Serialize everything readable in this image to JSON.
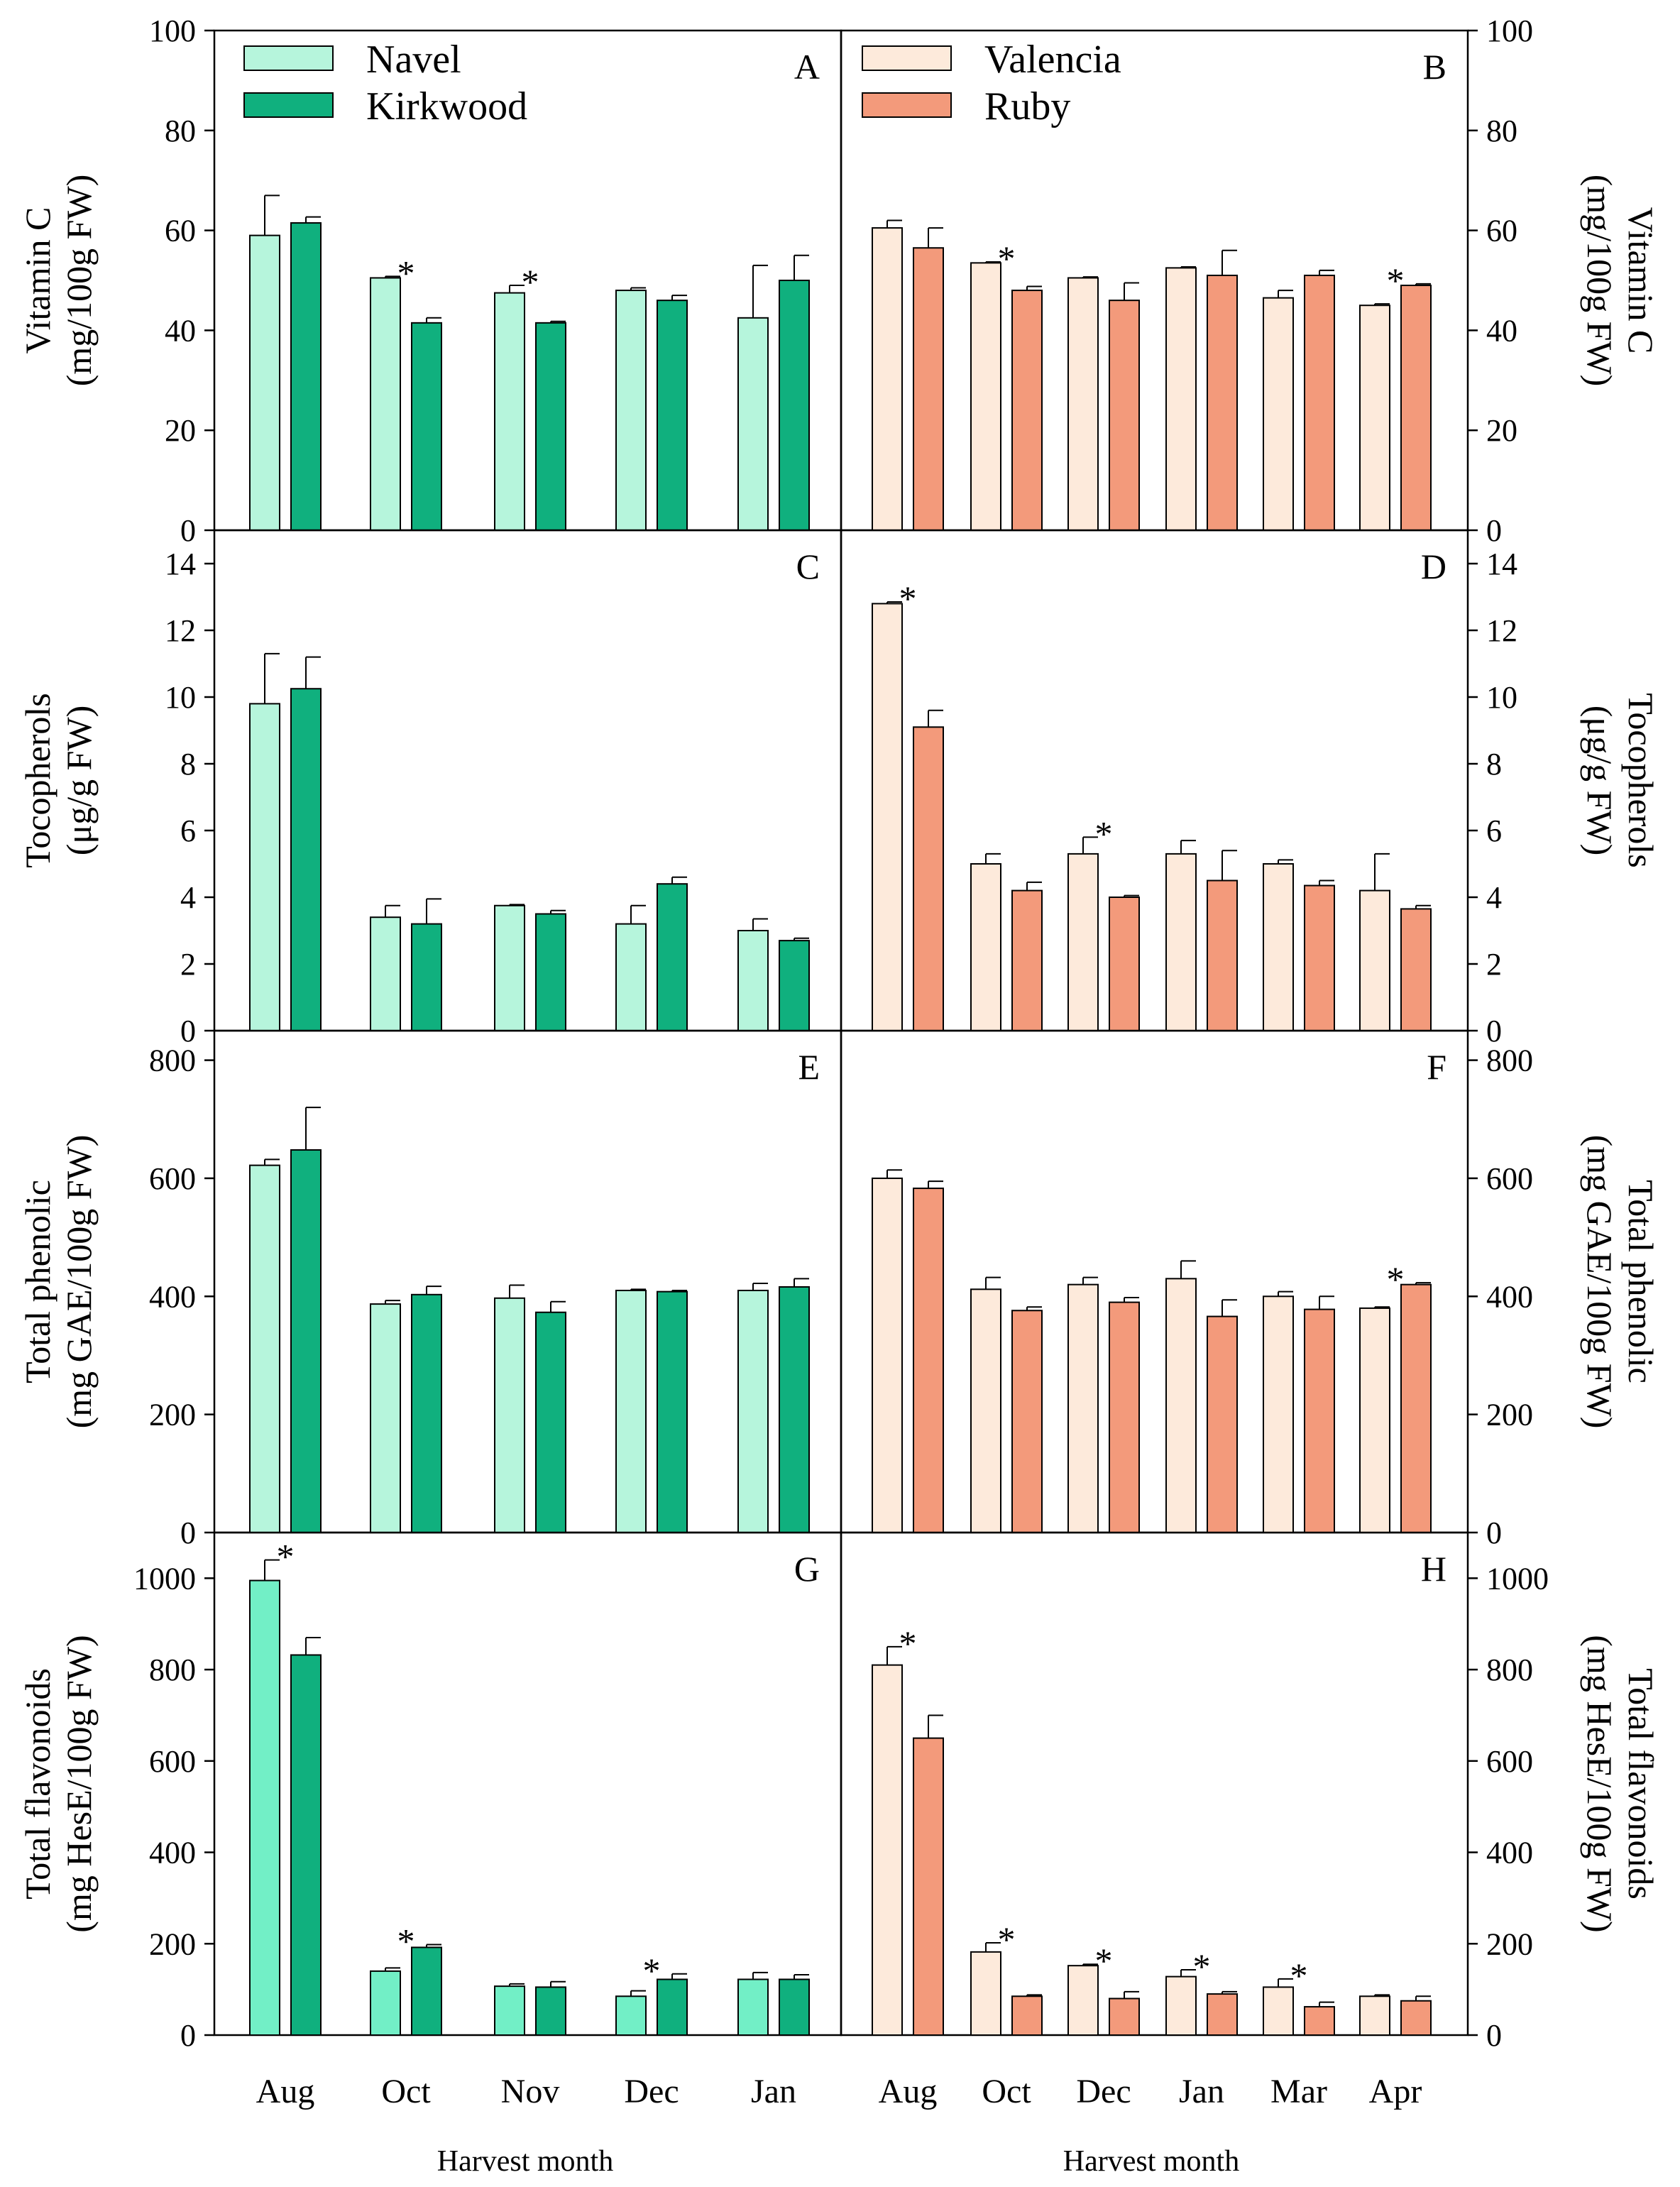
{
  "colors": {
    "navel": "#b6f5dc",
    "kirkwood": "#10b07e",
    "navel_flav": "#72efc6",
    "valencia": "#fdeadb",
    "ruby": "#f39a7b",
    "axis": "#000000"
  },
  "x_axis_label": "Harvest month",
  "chart_data": [
    {
      "panel": "A",
      "type": "bar",
      "ylabel": [
        "Vitamin C",
        "(mg/100g FW)"
      ],
      "ylim": [
        0,
        100
      ],
      "yticks": [
        0,
        20,
        40,
        60,
        80,
        100
      ],
      "categories": [
        "Aug",
        "Oct",
        "Nov",
        "Dec",
        "Jan"
      ],
      "series": [
        {
          "name": "Navel",
          "values": [
            59,
            50.5,
            47.5,
            48,
            42.5
          ],
          "errors": [
            8,
            0.3,
            1.5,
            0.5,
            10.5
          ]
        },
        {
          "name": "Kirkwood",
          "values": [
            61.5,
            41.5,
            41.5,
            46,
            50
          ],
          "errors": [
            1.2,
            1,
            0.3,
            1,
            5
          ]
        }
      ],
      "significant": [
        false,
        true,
        true,
        false,
        false
      ],
      "legend": [
        "Navel",
        "Kirkwood"
      ]
    },
    {
      "panel": "B",
      "type": "bar",
      "ylabel": [
        "Vitamin C",
        "(mg/100g FW)"
      ],
      "ylim": [
        0,
        100
      ],
      "yticks": [
        0,
        20,
        40,
        60,
        80,
        100
      ],
      "categories": [
        "Aug",
        "Oct",
        "Dec",
        "Jan",
        "Mar",
        "Apr"
      ],
      "series": [
        {
          "name": "Valencia",
          "values": [
            60.5,
            53.5,
            50.5,
            52.5,
            46.5,
            45
          ],
          "errors": [
            1.5,
            0.2,
            0.2,
            0.2,
            1.5,
            0.3
          ]
        },
        {
          "name": "Ruby",
          "values": [
            56.5,
            48,
            46,
            51,
            51,
            49
          ],
          "errors": [
            4,
            0.8,
            3.5,
            5,
            1,
            0.3
          ]
        }
      ],
      "significant": [
        false,
        true,
        false,
        false,
        false,
        true
      ],
      "legend": [
        "Valencia",
        "Ruby"
      ]
    },
    {
      "panel": "C",
      "type": "bar",
      "ylabel": [
        "Tocopherols",
        "(μg/g FW)"
      ],
      "ylim": [
        0,
        15
      ],
      "yticks": [
        0,
        2,
        4,
        6,
        8,
        10,
        12,
        14
      ],
      "categories": [
        "Aug",
        "Oct",
        "Nov",
        "Dec",
        "Jan"
      ],
      "series": [
        {
          "name": "Navel",
          "values": [
            9.8,
            3.4,
            3.75,
            3.2,
            3.0
          ],
          "errors": [
            1.5,
            0.35,
            0.03,
            0.55,
            0.35
          ]
        },
        {
          "name": "Kirkwood",
          "values": [
            10.25,
            3.2,
            3.5,
            4.4,
            2.7
          ],
          "errors": [
            0.95,
            0.75,
            0.1,
            0.2,
            0.07
          ]
        }
      ],
      "significant": [
        false,
        false,
        false,
        false,
        false
      ]
    },
    {
      "panel": "D",
      "type": "bar",
      "ylabel": [
        "Tocopherols",
        "(μg/g FW)"
      ],
      "ylim": [
        0,
        15
      ],
      "yticks": [
        0,
        2,
        4,
        6,
        8,
        10,
        12,
        14
      ],
      "categories": [
        "Aug",
        "Oct",
        "Dec",
        "Jan",
        "Mar",
        "Apr"
      ],
      "series": [
        {
          "name": "Valencia",
          "values": [
            12.8,
            5.0,
            5.3,
            5.3,
            5.0,
            4.2
          ],
          "errors": [
            0.05,
            0.3,
            0.5,
            0.4,
            0.12,
            1.1
          ]
        },
        {
          "name": "Ruby",
          "values": [
            9.1,
            4.2,
            4.0,
            4.5,
            4.35,
            3.65
          ],
          "errors": [
            0.5,
            0.25,
            0.05,
            0.9,
            0.15,
            0.1
          ]
        }
      ],
      "significant": [
        true,
        false,
        true,
        false,
        false,
        false
      ]
    },
    {
      "panel": "E",
      "type": "bar",
      "ylabel": [
        "Total phenolic",
        "(mg GAE/100g FW)"
      ],
      "ylim": [
        0,
        850
      ],
      "yticks": [
        0,
        200,
        400,
        600,
        800
      ],
      "categories": [
        "Aug",
        "Oct",
        "Nov",
        "Dec",
        "Jan"
      ],
      "series": [
        {
          "name": "Navel",
          "values": [
            622,
            387,
            397,
            410,
            410
          ],
          "errors": [
            10,
            6,
            22,
            2,
            12
          ]
        },
        {
          "name": "Kirkwood",
          "values": [
            648,
            403,
            373,
            408,
            416
          ],
          "errors": [
            72,
            14,
            18,
            2,
            14
          ]
        }
      ],
      "significant": [
        false,
        false,
        false,
        false,
        false
      ]
    },
    {
      "panel": "F",
      "type": "bar",
      "ylabel": [
        "Total phenolic",
        "(mg GAE/100g FW)"
      ],
      "ylim": [
        0,
        850
      ],
      "yticks": [
        0,
        200,
        400,
        600,
        800
      ],
      "categories": [
        "Aug",
        "Oct",
        "Dec",
        "Jan",
        "Mar",
        "Apr"
      ],
      "series": [
        {
          "name": "Valencia",
          "values": [
            600,
            412,
            420,
            430,
            400,
            380
          ],
          "errors": [
            14,
            20,
            12,
            30,
            8,
            2
          ]
        },
        {
          "name": "Ruby",
          "values": [
            583,
            376,
            390,
            366,
            378,
            420
          ],
          "errors": [
            12,
            6,
            8,
            28,
            22,
            3
          ]
        }
      ],
      "significant": [
        false,
        false,
        false,
        false,
        false,
        true
      ]
    },
    {
      "panel": "G",
      "type": "bar",
      "ylabel": [
        "Total flavonoids",
        "(mg HesE/100g FW)"
      ],
      "ylim": [
        0,
        1100
      ],
      "yticks": [
        0,
        200,
        400,
        600,
        800,
        1000
      ],
      "categories": [
        "Aug",
        "Oct",
        "Nov",
        "Dec",
        "Jan"
      ],
      "series": [
        {
          "name": "Navel",
          "values": [
            995,
            140,
            107,
            85,
            122
          ],
          "errors": [
            45,
            7,
            5,
            12,
            15
          ]
        },
        {
          "name": "Kirkwood",
          "values": [
            832,
            192,
            105,
            122,
            122
          ],
          "errors": [
            38,
            6,
            12,
            12,
            10
          ]
        }
      ],
      "significant": [
        true,
        true,
        false,
        true,
        false
      ]
    },
    {
      "panel": "H",
      "type": "bar",
      "ylabel": [
        "Total flavonoids",
        "(mg HesE/100g FW)"
      ],
      "ylim": [
        0,
        1100
      ],
      "yticks": [
        0,
        200,
        400,
        600,
        800,
        1000
      ],
      "categories": [
        "Aug",
        "Oct",
        "Dec",
        "Jan",
        "Mar",
        "Apr"
      ],
      "series": [
        {
          "name": "Valencia",
          "values": [
            810,
            182,
            152,
            128,
            105,
            85
          ],
          "errors": [
            40,
            20,
            3,
            15,
            18,
            3
          ]
        },
        {
          "name": "Ruby",
          "values": [
            650,
            85,
            80,
            90,
            62,
            75
          ],
          "errors": [
            50,
            3,
            15,
            5,
            10,
            10
          ]
        }
      ],
      "significant": [
        true,
        true,
        true,
        true,
        true,
        false
      ]
    }
  ]
}
